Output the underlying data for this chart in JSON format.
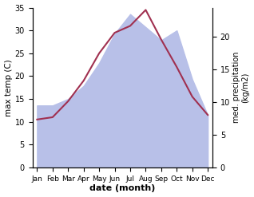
{
  "months": [
    "Jan",
    "Feb",
    "Mar",
    "Apr",
    "May",
    "Jun",
    "Jul",
    "Aug",
    "Sep",
    "Oct",
    "Nov",
    "Dec"
  ],
  "temp": [
    10.5,
    11.0,
    14.5,
    19.0,
    25.0,
    29.5,
    31.0,
    34.5,
    28.0,
    22.0,
    15.5,
    11.5
  ],
  "precip": [
    9.5,
    9.5,
    10.5,
    12.5,
    16.0,
    20.5,
    23.5,
    21.5,
    19.5,
    21.0,
    13.5,
    8.0
  ],
  "temp_color": "#a03050",
  "precip_fill_color": "#b8c0e8",
  "temp_ylim": [
    0,
    35
  ],
  "precip_ylim": [
    0,
    24.5
  ],
  "precip_yticks": [
    0,
    5,
    10,
    15,
    20
  ],
  "temp_yticks": [
    0,
    5,
    10,
    15,
    20,
    25,
    30,
    35
  ],
  "xlabel": "date (month)",
  "ylabel_left": "max temp (C)",
  "ylabel_right": "med. precipitation\n(kg/m2)",
  "figsize": [
    3.18,
    2.47
  ],
  "dpi": 100
}
